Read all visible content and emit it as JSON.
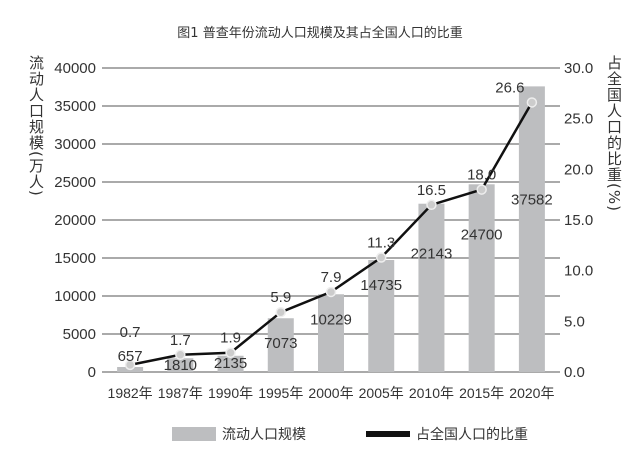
{
  "chart_data": {
    "type": "bar+line",
    "title": "图1  普查年份流动人口规模及其占全国人口的比重",
    "categories": [
      "1982年",
      "1987年",
      "1990年",
      "1995年",
      "2000年",
      "2005年",
      "2010年",
      "2015年",
      "2020年"
    ],
    "series": [
      {
        "name": "流动人口规模",
        "type": "bar",
        "axis": "left",
        "color": "#bdbec0",
        "values": [
          657,
          1810,
          2135,
          7073,
          10229,
          14735,
          22143,
          24700,
          37582
        ]
      },
      {
        "name": "占全国人口的比重",
        "type": "line",
        "axis": "right",
        "color": "#111111",
        "values": [
          0.7,
          1.7,
          1.9,
          5.9,
          7.9,
          11.3,
          16.5,
          18.0,
          26.6
        ]
      }
    ],
    "ylabel": "流动人口规模(万人)",
    "y2label": "占全国人口的比重(%)",
    "ylim": [
      0,
      40000
    ],
    "y2lim": [
      0,
      30
    ],
    "yticks": [
      0,
      5000,
      10000,
      15000,
      20000,
      25000,
      30000,
      35000,
      40000
    ],
    "y2ticks": [
      "0.0",
      "5.0",
      "10.0",
      "15.0",
      "20.0",
      "25.0",
      "30.0"
    ],
    "grid": true,
    "legend": "bottom"
  }
}
